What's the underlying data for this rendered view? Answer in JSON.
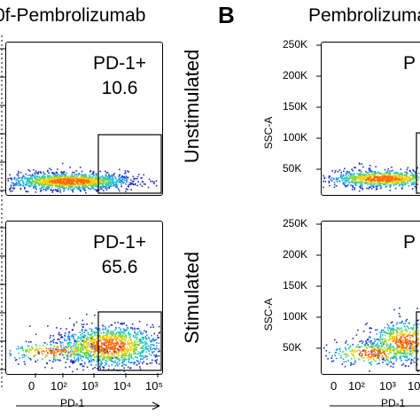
{
  "panel_a": {
    "title": "0f-Pembrolizumab",
    "top_gate": {
      "name": "PD-1+",
      "value": "10.6"
    },
    "bottom_gate": {
      "name": "PD-1+",
      "value": "65.6"
    },
    "x_axis": {
      "label": "PD-1",
      "ticks": [
        "0",
        "10²",
        "10³",
        "10⁴",
        "10⁵"
      ]
    }
  },
  "panel_b": {
    "letter": "B",
    "title": "Pembrolizumab",
    "top_row": "Unstimulated",
    "bottom_row": "Stimulated",
    "y_axis_label": "SSC-A",
    "y_ticks": [
      "250K",
      "200K",
      "150K",
      "100K",
      "50K"
    ],
    "top_gate_partial": "P",
    "bottom_gate_partial": "P",
    "x_axis": {
      "label": "PD-1",
      "ticks": [
        "0",
        "10²",
        "10³",
        "10"
      ]
    }
  },
  "chart_data": [
    {
      "type": "scatter",
      "title": "0f-Pembrolizumab",
      "xlabel": "PD-1",
      "ylabel": "",
      "x_scale": "log",
      "x_ticks": [
        "0",
        "10²",
        "10³",
        "10⁴",
        "10⁵"
      ],
      "panels": [
        {
          "gate": "PD-1+",
          "percent": 10.6
        },
        {
          "gate": "PD-1+",
          "percent": 65.6
        }
      ]
    },
    {
      "type": "scatter",
      "title": "Pembrolizumab",
      "xlabel": "PD-1",
      "ylabel": "SSC-A",
      "y_ticks": [
        "250K",
        "200K",
        "150K",
        "100K",
        "50K"
      ],
      "panels": [
        {
          "row": "Unstimulated",
          "gate": "P"
        },
        {
          "row": "Stimulated",
          "gate": "P"
        }
      ]
    }
  ]
}
